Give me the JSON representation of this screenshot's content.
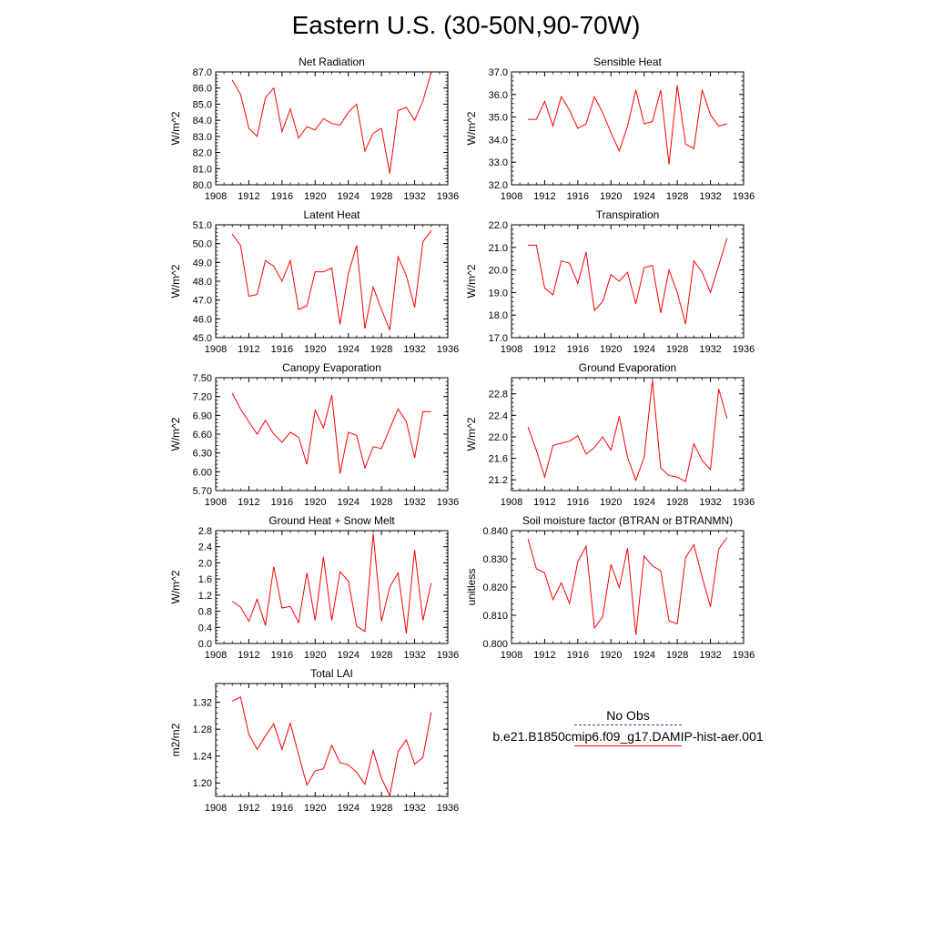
{
  "title": "Eastern U.S. (30-50N,90-70W)",
  "colors": {
    "model": "#ff0000",
    "obs": "#3a3aa8",
    "axis": "#000000"
  },
  "legend": {
    "obs_label": "No Obs",
    "model_label": "b.e21.B1850cmip6.f09_g17.DAMIP-hist-aer.001"
  },
  "chart_data": [
    {
      "type": "line",
      "title": "Net Radiation",
      "ylabel": "W/m^2",
      "xlim": [
        1908,
        1936
      ],
      "ylim": [
        80,
        87
      ],
      "xticks": [
        "1908",
        "1912",
        "1916",
        "1920",
        "1924",
        "1928",
        "1932",
        "1936"
      ],
      "yticks": [
        "80.0",
        "81.0",
        "82.0",
        "83.0",
        "84.0",
        "85.0",
        "86.0",
        "87.0"
      ],
      "x": [
        1910,
        1911,
        1912,
        1913,
        1914,
        1915,
        1916,
        1917,
        1918,
        1919,
        1920,
        1921,
        1922,
        1923,
        1924,
        1925,
        1926,
        1927,
        1928,
        1929,
        1930,
        1931,
        1932,
        1933,
        1934
      ],
      "values": [
        86.5,
        85.6,
        83.5,
        83.0,
        85.4,
        86.0,
        83.3,
        84.7,
        82.9,
        83.6,
        83.4,
        84.1,
        83.8,
        83.7,
        84.5,
        85.0,
        82.1,
        83.2,
        83.5,
        80.7,
        84.6,
        84.8,
        84.0,
        85.2,
        87.0
      ]
    },
    {
      "type": "line",
      "title": "Sensible Heat",
      "ylabel": "W/m^2",
      "xlim": [
        1908,
        1936
      ],
      "ylim": [
        32,
        37
      ],
      "xticks": [
        "1908",
        "1912",
        "1916",
        "1920",
        "1924",
        "1928",
        "1932",
        "1936"
      ],
      "yticks": [
        "32.0",
        "33.0",
        "34.0",
        "35.0",
        "36.0",
        "37.0"
      ],
      "x": [
        1910,
        1911,
        1912,
        1913,
        1914,
        1915,
        1916,
        1917,
        1918,
        1919,
        1920,
        1921,
        1922,
        1923,
        1924,
        1925,
        1926,
        1927,
        1928,
        1929,
        1930,
        1931,
        1932,
        1933,
        1934
      ],
      "values": [
        34.9,
        34.9,
        35.7,
        34.6,
        35.9,
        35.3,
        34.5,
        34.7,
        35.9,
        35.2,
        34.3,
        33.5,
        34.6,
        36.2,
        34.7,
        34.8,
        36.2,
        32.9,
        36.4,
        33.8,
        33.6,
        36.2,
        35.1,
        34.6,
        34.7
      ]
    },
    {
      "type": "line",
      "title": "Latent Heat",
      "ylabel": "W/m^2",
      "xlim": [
        1908,
        1936
      ],
      "ylim": [
        45,
        51
      ],
      "xticks": [
        "1908",
        "1912",
        "1916",
        "1920",
        "1924",
        "1928",
        "1932",
        "1936"
      ],
      "yticks": [
        "45.0",
        "46.0",
        "47.0",
        "48.0",
        "49.0",
        "50.0",
        "51.0"
      ],
      "x": [
        1910,
        1911,
        1912,
        1913,
        1914,
        1915,
        1916,
        1917,
        1918,
        1919,
        1920,
        1921,
        1922,
        1923,
        1924,
        1925,
        1926,
        1927,
        1928,
        1929,
        1930,
        1931,
        1932,
        1933,
        1934
      ],
      "values": [
        50.5,
        49.9,
        47.2,
        47.3,
        49.1,
        48.8,
        48.0,
        49.1,
        46.5,
        46.7,
        48.5,
        48.5,
        48.7,
        45.7,
        48.4,
        49.9,
        45.5,
        47.7,
        46.5,
        45.4,
        49.3,
        48.3,
        46.6,
        50.1,
        50.7
      ]
    },
    {
      "type": "line",
      "title": "Transpiration",
      "ylabel": "W/m^2",
      "xlim": [
        1908,
        1936
      ],
      "ylim": [
        17,
        22
      ],
      "xticks": [
        "1908",
        "1912",
        "1916",
        "1920",
        "1924",
        "1928",
        "1932",
        "1936"
      ],
      "yticks": [
        "17.0",
        "18.0",
        "19.0",
        "20.0",
        "21.0",
        "22.0"
      ],
      "x": [
        1910,
        1911,
        1912,
        1913,
        1914,
        1915,
        1916,
        1917,
        1918,
        1919,
        1920,
        1921,
        1922,
        1923,
        1924,
        1925,
        1926,
        1927,
        1928,
        1929,
        1930,
        1931,
        1932,
        1933,
        1934
      ],
      "values": [
        21.1,
        21.1,
        19.2,
        18.9,
        20.4,
        20.3,
        19.4,
        20.8,
        18.2,
        18.6,
        19.8,
        19.5,
        19.9,
        18.5,
        20.1,
        20.2,
        18.1,
        20.0,
        19.0,
        17.6,
        20.4,
        19.9,
        19.0,
        20.2,
        21.4
      ]
    },
    {
      "type": "line",
      "title": "Canopy Evaporation",
      "ylabel": "W/m^2",
      "xlim": [
        1908,
        1936
      ],
      "ylim": [
        5.7,
        7.5
      ],
      "xticks": [
        "1908",
        "1912",
        "1916",
        "1920",
        "1924",
        "1928",
        "1932",
        "1936"
      ],
      "yticks": [
        "5.70",
        "6.00",
        "6.30",
        "6.60",
        "6.90",
        "7.20",
        "7.50"
      ],
      "x": [
        1910,
        1911,
        1912,
        1913,
        1914,
        1915,
        1916,
        1917,
        1918,
        1919,
        1920,
        1921,
        1922,
        1923,
        1924,
        1925,
        1926,
        1927,
        1928,
        1929,
        1930,
        1931,
        1932,
        1933,
        1934
      ],
      "values": [
        7.25,
        7.0,
        6.8,
        6.6,
        6.82,
        6.6,
        6.47,
        6.63,
        6.55,
        6.12,
        6.98,
        6.7,
        7.22,
        5.97,
        6.63,
        6.58,
        6.06,
        6.4,
        6.37,
        6.69,
        7.0,
        6.8,
        6.22,
        6.96,
        6.96
      ]
    },
    {
      "type": "line",
      "title": "Ground Evaporation",
      "ylabel": "W/m^2",
      "xlim": [
        1908,
        1936
      ],
      "ylim": [
        21.0,
        23.1
      ],
      "xticks": [
        "1908",
        "1912",
        "1916",
        "1920",
        "1924",
        "1928",
        "1932",
        "1936"
      ],
      "yticks": [
        "21.2",
        "21.6",
        "22.0",
        "22.4",
        "22.8"
      ],
      "x": [
        1910,
        1911,
        1912,
        1913,
        1914,
        1915,
        1916,
        1917,
        1918,
        1919,
        1920,
        1921,
        1922,
        1923,
        1924,
        1925,
        1926,
        1927,
        1928,
        1929,
        1930,
        1931,
        1932,
        1933,
        1934
      ],
      "values": [
        22.18,
        21.75,
        21.25,
        21.84,
        21.88,
        21.92,
        22.02,
        21.68,
        21.8,
        22.0,
        21.75,
        22.38,
        21.62,
        21.19,
        21.62,
        23.05,
        21.42,
        21.28,
        21.25,
        21.17,
        21.87,
        21.56,
        21.39,
        22.89,
        22.34
      ]
    },
    {
      "type": "line",
      "title": "Ground Heat + Snow Melt",
      "ylabel": "W/m^2",
      "xlim": [
        1908,
        1936
      ],
      "ylim": [
        0,
        2.8
      ],
      "xticks": [
        "1908",
        "1912",
        "1916",
        "1920",
        "1924",
        "1928",
        "1932",
        "1936"
      ],
      "yticks": [
        "0.0",
        "0.4",
        "0.8",
        "1.2",
        "1.6",
        "2.0",
        "2.4",
        "2.8"
      ],
      "x": [
        1910,
        1911,
        1912,
        1913,
        1914,
        1915,
        1916,
        1917,
        1918,
        1919,
        1920,
        1921,
        1922,
        1923,
        1924,
        1925,
        1926,
        1927,
        1928,
        1929,
        1930,
        1931,
        1932,
        1933,
        1934
      ],
      "values": [
        1.05,
        0.9,
        0.55,
        1.1,
        0.45,
        1.9,
        0.88,
        0.92,
        0.52,
        1.75,
        0.57,
        2.15,
        0.57,
        1.78,
        1.55,
        0.43,
        0.3,
        2.72,
        0.55,
        1.4,
        1.75,
        0.25,
        2.32,
        0.57,
        1.5
      ]
    },
    {
      "type": "line",
      "title": "Soil moisture factor (BTRAN or BTRANMN)",
      "ylabel": "unitless",
      "xlim": [
        1908,
        1936
      ],
      "ylim": [
        0.8,
        0.84
      ],
      "xticks": [
        "1908",
        "1912",
        "1916",
        "1920",
        "1924",
        "1928",
        "1932",
        "1936"
      ],
      "yticks": [
        "0.800",
        "0.810",
        "0.820",
        "0.830",
        "0.840"
      ],
      "x": [
        1910,
        1911,
        1912,
        1913,
        1914,
        1915,
        1916,
        1917,
        1918,
        1919,
        1920,
        1921,
        1922,
        1923,
        1924,
        1925,
        1926,
        1927,
        1928,
        1929,
        1930,
        1931,
        1932,
        1933,
        1934
      ],
      "values": [
        0.837,
        0.8265,
        0.825,
        0.8155,
        0.8215,
        0.8142,
        0.829,
        0.8345,
        0.8055,
        0.8095,
        0.828,
        0.8198,
        0.8338,
        0.803,
        0.831,
        0.8275,
        0.8258,
        0.808,
        0.807,
        0.8305,
        0.835,
        0.8235,
        0.813,
        0.8335,
        0.8375
      ]
    },
    {
      "type": "line",
      "title": "Total LAI",
      "ylabel": "m2/m2",
      "xlim": [
        1908,
        1936
      ],
      "ylim": [
        1.18,
        1.348
      ],
      "xticks": [
        "1908",
        "1912",
        "1916",
        "1920",
        "1924",
        "1928",
        "1932",
        "1936"
      ],
      "yticks": [
        "1.20",
        "1.24",
        "1.28",
        "1.32"
      ],
      "x": [
        1910,
        1911,
        1912,
        1913,
        1914,
        1915,
        1916,
        1917,
        1918,
        1919,
        1920,
        1921,
        1922,
        1923,
        1924,
        1925,
        1926,
        1927,
        1928,
        1929,
        1930,
        1931,
        1932,
        1933,
        1934
      ],
      "values": [
        1.322,
        1.328,
        1.272,
        1.25,
        1.27,
        1.288,
        1.25,
        1.289,
        1.242,
        1.197,
        1.218,
        1.221,
        1.256,
        1.23,
        1.227,
        1.216,
        1.198,
        1.248,
        1.207,
        1.181,
        1.247,
        1.264,
        1.228,
        1.238,
        1.305
      ]
    }
  ]
}
